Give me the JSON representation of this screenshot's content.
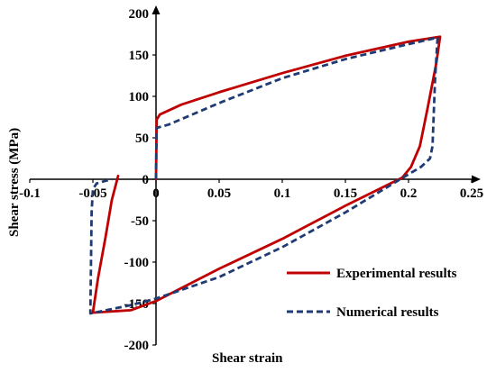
{
  "chart_data": {
    "type": "line",
    "title": "",
    "xlabel": "Shear strain",
    "ylabel": "Shear stress (MPa)",
    "xlim": [
      -0.1,
      0.25
    ],
    "ylim": [
      -200,
      200
    ],
    "xticks": [
      "-0.1",
      "-0.05",
      "0",
      "0.05",
      "0.1",
      "0.15",
      "0.2",
      "0.25"
    ],
    "yticks": [
      "200",
      "150",
      "100",
      "50",
      "0",
      "-50",
      "-100",
      "-150",
      "-200"
    ],
    "grid": false,
    "legend_position": "bottom-right",
    "series": [
      {
        "name": "Experimental results",
        "color": "#c00000",
        "style": "solid",
        "points": [
          [
            0.0,
            0.0
          ],
          [
            0.0005,
            72
          ],
          [
            0.003,
            78
          ],
          [
            0.02,
            90
          ],
          [
            0.05,
            105
          ],
          [
            0.1,
            128
          ],
          [
            0.15,
            149
          ],
          [
            0.2,
            166
          ],
          [
            0.225,
            172
          ],
          [
            0.222,
            140
          ],
          [
            0.215,
            85
          ],
          [
            0.209,
            40
          ],
          [
            0.202,
            15
          ],
          [
            0.195,
            2
          ],
          [
            0.15,
            -32
          ],
          [
            0.1,
            -72
          ],
          [
            0.05,
            -108
          ],
          [
            0.0,
            -147
          ],
          [
            -0.02,
            -158
          ],
          [
            -0.05,
            -161
          ],
          [
            -0.046,
            -120
          ],
          [
            -0.04,
            -70
          ],
          [
            -0.035,
            -25
          ],
          [
            -0.03,
            4
          ]
        ]
      },
      {
        "name": "Numerical results",
        "color": "#1f3b73",
        "style": "dashed",
        "points": [
          [
            0.0,
            0.0
          ],
          [
            0.0005,
            62
          ],
          [
            0.01,
            66
          ],
          [
            0.05,
            92
          ],
          [
            0.1,
            122
          ],
          [
            0.15,
            145
          ],
          [
            0.2,
            163
          ],
          [
            0.223,
            171
          ],
          [
            0.221,
            120
          ],
          [
            0.219,
            40
          ],
          [
            0.217,
            25
          ],
          [
            0.21,
            15
          ],
          [
            0.2,
            6
          ],
          [
            0.15,
            -40
          ],
          [
            0.1,
            -82
          ],
          [
            0.05,
            -118
          ],
          [
            0.0,
            -144
          ],
          [
            -0.02,
            -152
          ],
          [
            -0.052,
            -162
          ],
          [
            -0.051,
            -40
          ],
          [
            -0.05,
            -12
          ],
          [
            -0.047,
            -5
          ],
          [
            -0.04,
            -2
          ],
          [
            -0.035,
            0
          ]
        ]
      }
    ]
  }
}
